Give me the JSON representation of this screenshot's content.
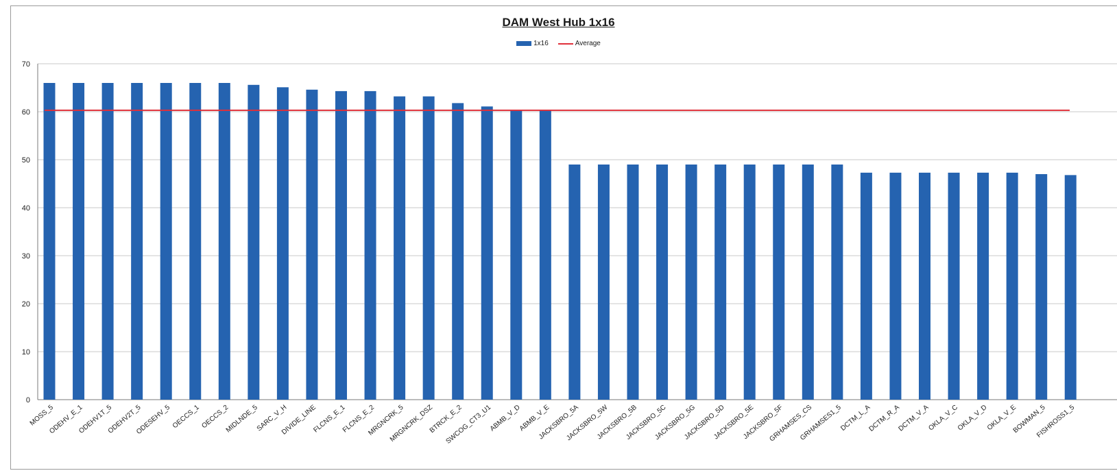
{
  "chart_data": {
    "type": "bar",
    "title": "DAM West Hub 1x16",
    "xlabel": "",
    "ylabel": "",
    "ylim": [
      0,
      70
    ],
    "yticks": [
      0,
      10,
      20,
      30,
      40,
      50,
      60,
      70
    ],
    "grid": true,
    "legend_position": "top-center",
    "legend": [
      "1x16",
      "Average"
    ],
    "categories": [
      "MOSS_5",
      "ODEHV_E_1",
      "ODEHV1T_5",
      "ODEHV2T_5",
      "ODESEHV_5",
      "OECCS_1",
      "OECCS_2",
      "MIDLNDE_5",
      "SARC_V_H",
      "DIVIDE_LINE",
      "FLCNS_E_1",
      "FLCNS_E_2",
      "MRGNCRK_5",
      "MRGNCRK_DSZ",
      "BTRCK_E_2",
      "SWCOG_CT3_U1",
      "ABMB_V_D",
      "ABMB_V_E",
      "JACKSBRO_5A",
      "JACKSBRO_5W",
      "JACKSBRO_5B",
      "JACKSBRO_5C",
      "JACKSBRO_5G",
      "JACKSBRO_5D",
      "JACKSBRO_5E",
      "JACKSBRO_5F",
      "GRHAMSES_CS",
      "GRHAMSES1_5",
      "DCTM_L_A",
      "DCTM_R_A",
      "DCTM_V_A",
      "OKLA_V_C",
      "OKLA_V_D",
      "OKLA_V_E",
      "BOWMAN_5",
      "FISHROSS1_5"
    ],
    "series": [
      {
        "name": "1x16",
        "type": "bar",
        "color": "#2563b0",
        "values": [
          66,
          66,
          66,
          66,
          66,
          66,
          66,
          65.6,
          65.1,
          64.6,
          64.3,
          64.3,
          63.2,
          63.2,
          61.8,
          61.1,
          60.3,
          60.3,
          49,
          49,
          49,
          49,
          49,
          49,
          49,
          49,
          49,
          49,
          47.3,
          47.3,
          47.3,
          47.3,
          47.3,
          47.3,
          47,
          46.8
        ]
      },
      {
        "name": "Average",
        "type": "line",
        "color": "#e0303a",
        "values": [
          60.3,
          60.3,
          60.3,
          60.3,
          60.3,
          60.3,
          60.3,
          60.3,
          60.3,
          60.3,
          60.3,
          60.3,
          60.3,
          60.3,
          60.3,
          60.3,
          60.3,
          60.3,
          60.3,
          60.3,
          60.3,
          60.3,
          60.3,
          60.3,
          60.3,
          60.3,
          60.3,
          60.3,
          60.3,
          60.3,
          60.3,
          60.3,
          60.3,
          60.3,
          60.3,
          60.3
        ]
      }
    ]
  }
}
